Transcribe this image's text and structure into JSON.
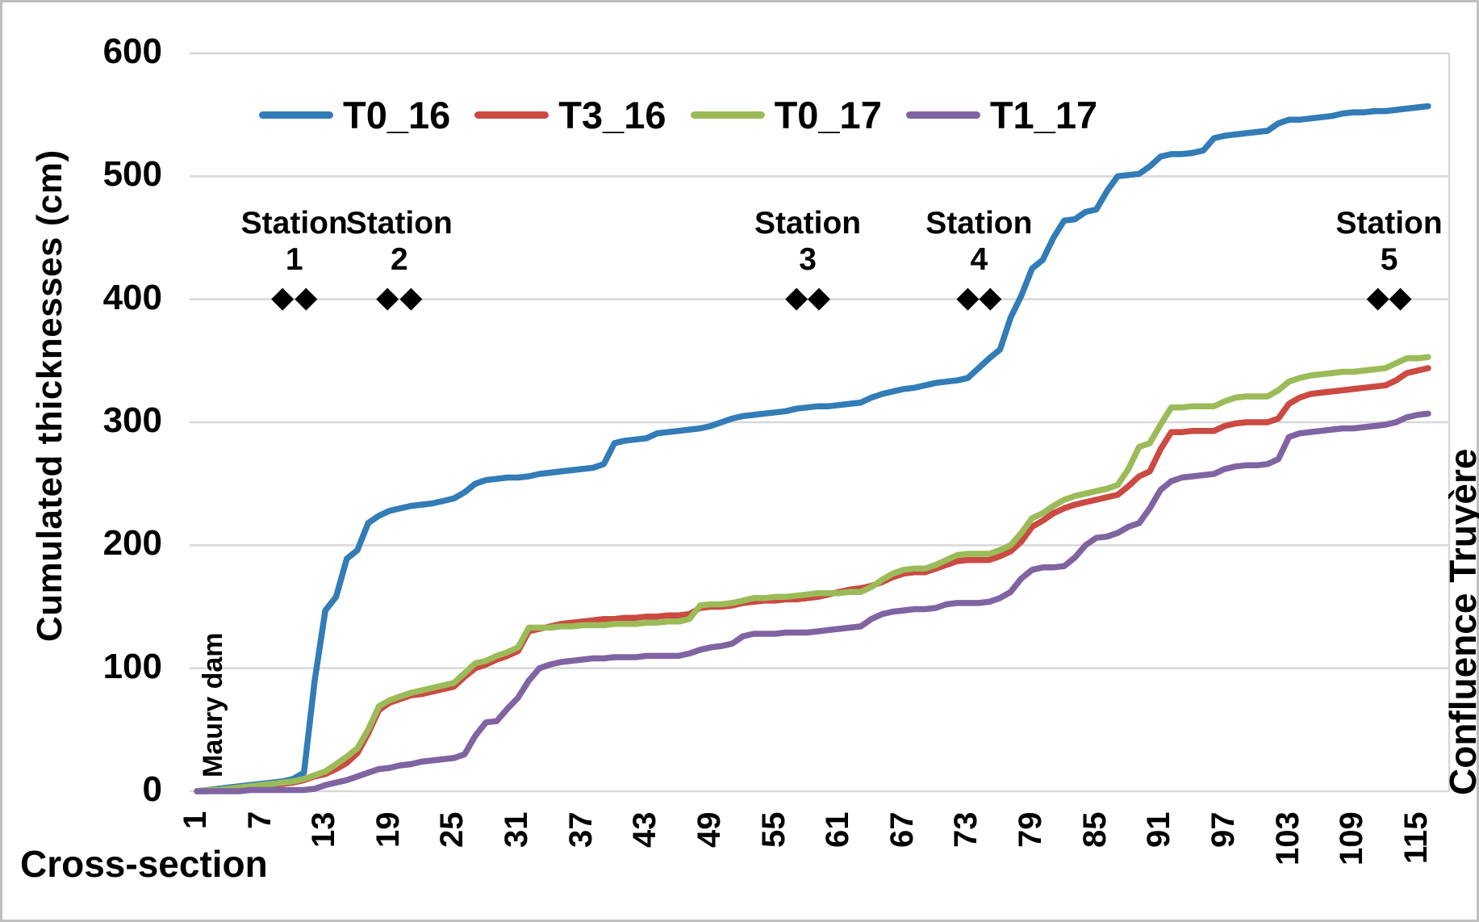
{
  "chart_data": {
    "type": "line",
    "title": "",
    "xlabel": "Cross-section",
    "ylabel": "Cumulated thicknesses (cm)",
    "ylim": [
      0,
      600
    ],
    "y_ticks": [
      0,
      100,
      200,
      300,
      400,
      500,
      600
    ],
    "x_ticks": [
      1,
      7,
      13,
      19,
      25,
      31,
      37,
      43,
      49,
      55,
      61,
      67,
      73,
      79,
      85,
      91,
      97,
      103,
      109,
      115
    ],
    "x_range": [
      1,
      116
    ],
    "grid": "horizontal",
    "legend_position": "top",
    "gridline_color": "#d8d8d8",
    "annotations": {
      "left_label": "Maury dam",
      "right_label": "Confluence Truyère"
    },
    "station_marker_value": 400,
    "station_marker_color": "#000000",
    "stations": [
      {
        "label": "Station",
        "number": "1",
        "cs": [
          9.0,
          11.2
        ]
      },
      {
        "label": "Station",
        "number": "2",
        "cs": [
          18.8,
          21.0
        ]
      },
      {
        "label": "Station",
        "number": "3",
        "cs": [
          57.0,
          59.1
        ]
      },
      {
        "label": "Station",
        "number": "4",
        "cs": [
          73.0,
          75.1
        ]
      },
      {
        "label": "Station",
        "number": "5",
        "cs": [
          111.3,
          113.4
        ]
      }
    ],
    "series": [
      {
        "name": "T0_16",
        "color": "#327cb7",
        "values": [
          0,
          1,
          2,
          3,
          4,
          5,
          6,
          7,
          8,
          10,
          15,
          90,
          147,
          158,
          189,
          196,
          218,
          224,
          228,
          230,
          232,
          233,
          234,
          236,
          238,
          243,
          250,
          253,
          254,
          255,
          255,
          256,
          258,
          259,
          260,
          261,
          262,
          263,
          266,
          283,
          285,
          286,
          287,
          291,
          292,
          293,
          294,
          295,
          297,
          300,
          303,
          305,
          306,
          307,
          308,
          309,
          311,
          312,
          313,
          313,
          314,
          315,
          316,
          320,
          323,
          325,
          327,
          328,
          330,
          332,
          333,
          334,
          336,
          344,
          352,
          359,
          385,
          403,
          425,
          432,
          450,
          464,
          465,
          471,
          473,
          488,
          500,
          501,
          502,
          508,
          516,
          518,
          518,
          519,
          521,
          531,
          533,
          534,
          535,
          536,
          537,
          543,
          546,
          546,
          547,
          548,
          549,
          551,
          552,
          552,
          553,
          553,
          554,
          555,
          556,
          557
        ]
      },
      {
        "name": "T3_16",
        "color": "#cb4a42",
        "values": [
          0,
          0,
          1,
          1,
          2,
          3,
          4,
          5,
          6,
          7,
          9,
          12,
          14,
          18,
          23,
          31,
          47,
          66,
          72,
          75,
          78,
          79,
          81,
          83,
          85,
          93,
          100,
          103,
          107,
          110,
          114,
          130,
          132,
          134,
          136,
          137,
          138,
          139,
          140,
          140,
          141,
          141,
          142,
          142,
          143,
          143,
          144,
          149,
          150,
          150,
          151,
          153,
          154,
          155,
          155,
          156,
          156,
          157,
          158,
          160,
          162,
          164,
          165,
          167,
          170,
          174,
          177,
          178,
          178,
          181,
          184,
          187,
          188,
          188,
          188,
          191,
          195,
          203,
          215,
          220,
          226,
          230,
          233,
          235,
          237,
          239,
          241,
          248,
          256,
          260,
          278,
          292,
          292,
          293,
          293,
          293,
          297,
          299,
          300,
          300,
          300,
          303,
          315,
          320,
          323,
          324,
          325,
          326,
          327,
          328,
          329,
          330,
          334,
          340,
          342,
          344
        ]
      },
      {
        "name": "T0_17",
        "color": "#9bbb59",
        "values": [
          0,
          1,
          1,
          2,
          3,
          4,
          5,
          6,
          7,
          8,
          10,
          13,
          16,
          22,
          28,
          35,
          50,
          69,
          74,
          77,
          80,
          82,
          84,
          86,
          88,
          96,
          104,
          106,
          110,
          113,
          117,
          133,
          133,
          133,
          134,
          134,
          135,
          135,
          135,
          136,
          136,
          136,
          137,
          137,
          138,
          138,
          140,
          151,
          152,
          152,
          153,
          155,
          157,
          157,
          158,
          158,
          159,
          160,
          161,
          161,
          161,
          162,
          162,
          166,
          172,
          177,
          180,
          181,
          181,
          184,
          188,
          192,
          193,
          193,
          193,
          196,
          200,
          210,
          222,
          226,
          232,
          237,
          240,
          242,
          244,
          246,
          249,
          262,
          280,
          283,
          298,
          312,
          312,
          313,
          313,
          313,
          317,
          320,
          321,
          321,
          321,
          326,
          333,
          336,
          338,
          339,
          340,
          341,
          341,
          342,
          343,
          344,
          348,
          352,
          352,
          353
        ]
      },
      {
        "name": "T1_17",
        "color": "#8064a2",
        "values": [
          0,
          0,
          0,
          0,
          0,
          1,
          1,
          1,
          1,
          1,
          1,
          2,
          5,
          7,
          9,
          12,
          15,
          18,
          19,
          21,
          22,
          24,
          25,
          26,
          27,
          30,
          45,
          56,
          57,
          67,
          76,
          90,
          100,
          103,
          105,
          106,
          107,
          108,
          108,
          109,
          109,
          109,
          110,
          110,
          110,
          110,
          112,
          115,
          117,
          118,
          120,
          126,
          128,
          128,
          128,
          129,
          129,
          129,
          130,
          131,
          132,
          133,
          134,
          140,
          144,
          146,
          147,
          148,
          148,
          149,
          152,
          153,
          153,
          153,
          154,
          157,
          162,
          173,
          180,
          182,
          182,
          183,
          190,
          200,
          206,
          207,
          210,
          215,
          218,
          230,
          245,
          252,
          255,
          256,
          257,
          258,
          262,
          264,
          265,
          265,
          266,
          270,
          288,
          291,
          292,
          293,
          294,
          295,
          295,
          296,
          297,
          298,
          300,
          304,
          306,
          307
        ]
      }
    ]
  }
}
